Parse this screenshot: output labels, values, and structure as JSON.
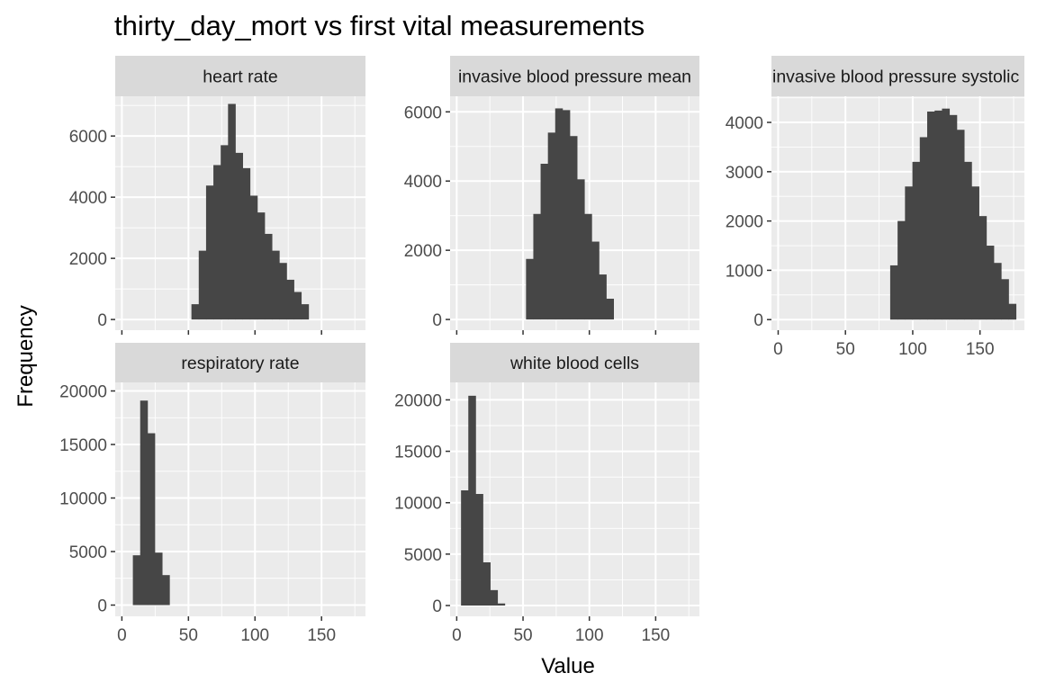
{
  "chart_data": {
    "type": "bar",
    "title": "thirty_day_mort vs first vital measurements",
    "xlabel": "Value",
    "ylabel": "Frequency",
    "colors": {
      "bar": "#464646",
      "panel_bg": "#ebebeb",
      "grid_major": "#ffffff",
      "strip_bg": "#d9d9d9"
    },
    "grid": true,
    "shared_x": true,
    "xlim": [
      -5,
      183
    ],
    "x_ticks": [
      0,
      50,
      100,
      150
    ],
    "bin_width": 5.5,
    "panels": [
      {
        "name": "heart rate",
        "ylim": [
          -350,
          7300
        ],
        "y_ticks": [
          0,
          2000,
          4000,
          6000
        ],
        "x_tick_labels_shown": false,
        "bins": [
          {
            "x": 55,
            "y": 500
          },
          {
            "x": 60.5,
            "y": 2250
          },
          {
            "x": 66,
            "y": 4380
          },
          {
            "x": 71.5,
            "y": 5050
          },
          {
            "x": 77,
            "y": 5700
          },
          {
            "x": 82.5,
            "y": 7050
          },
          {
            "x": 88,
            "y": 5450
          },
          {
            "x": 93.5,
            "y": 4950
          },
          {
            "x": 99,
            "y": 4050
          },
          {
            "x": 104.5,
            "y": 3500
          },
          {
            "x": 110,
            "y": 2800
          },
          {
            "x": 115.5,
            "y": 2250
          },
          {
            "x": 121,
            "y": 1850
          },
          {
            "x": 126.5,
            "y": 1300
          },
          {
            "x": 132,
            "y": 900
          },
          {
            "x": 137.5,
            "y": 500
          }
        ]
      },
      {
        "name": "invasive blood pressure mean",
        "ylim": [
          -310,
          6450
        ],
        "y_ticks": [
          0,
          2000,
          4000,
          6000
        ],
        "x_tick_labels_shown": false,
        "bins": [
          {
            "x": 55,
            "y": 1750
          },
          {
            "x": 60.5,
            "y": 3050
          },
          {
            "x": 66,
            "y": 4500
          },
          {
            "x": 71.5,
            "y": 5400
          },
          {
            "x": 77,
            "y": 6100
          },
          {
            "x": 82.5,
            "y": 6050
          },
          {
            "x": 88,
            "y": 5300
          },
          {
            "x": 93.5,
            "y": 4050
          },
          {
            "x": 99,
            "y": 3050
          },
          {
            "x": 104.5,
            "y": 2250
          },
          {
            "x": 110,
            "y": 1300
          },
          {
            "x": 115.5,
            "y": 600
          }
        ]
      },
      {
        "name": "invasive blood pressure systolic",
        "ylim": [
          -215,
          4530
        ],
        "y_ticks": [
          0,
          1000,
          2000,
          3000,
          4000
        ],
        "x_tick_labels_shown": true,
        "bins": [
          {
            "x": 86,
            "y": 1100
          },
          {
            "x": 91.5,
            "y": 2000
          },
          {
            "x": 97,
            "y": 2700
          },
          {
            "x": 102.5,
            "y": 3200
          },
          {
            "x": 108,
            "y": 3700
          },
          {
            "x": 113.5,
            "y": 4220
          },
          {
            "x": 119,
            "y": 4240
          },
          {
            "x": 124.5,
            "y": 4280
          },
          {
            "x": 130,
            "y": 4150
          },
          {
            "x": 135.5,
            "y": 3850
          },
          {
            "x": 141,
            "y": 3200
          },
          {
            "x": 146.5,
            "y": 2700
          },
          {
            "x": 152,
            "y": 2100
          },
          {
            "x": 157.5,
            "y": 1500
          },
          {
            "x": 163,
            "y": 1150
          },
          {
            "x": 168.5,
            "y": 820
          },
          {
            "x": 174,
            "y": 320
          }
        ]
      },
      {
        "name": "respiratory rate",
        "ylim": [
          -1050,
          20800
        ],
        "y_ticks": [
          0,
          5000,
          10000,
          15000,
          20000
        ],
        "x_tick_labels_shown": true,
        "bins": [
          {
            "x": 11,
            "y": 4650
          },
          {
            "x": 16.5,
            "y": 19100
          },
          {
            "x": 22,
            "y": 16050
          },
          {
            "x": 27.5,
            "y": 4900
          },
          {
            "x": 33,
            "y": 2800
          }
        ]
      },
      {
        "name": "white blood cells",
        "ylim": [
          -1050,
          21700
        ],
        "y_ticks": [
          0,
          5000,
          10000,
          15000,
          20000
        ],
        "x_tick_labels_shown": true,
        "bins": [
          {
            "x": 6,
            "y": 11200
          },
          {
            "x": 11.5,
            "y": 20400
          },
          {
            "x": 17,
            "y": 10850
          },
          {
            "x": 22.5,
            "y": 4200
          },
          {
            "x": 28,
            "y": 1500
          },
          {
            "x": 33.5,
            "y": 200
          }
        ]
      }
    ]
  }
}
